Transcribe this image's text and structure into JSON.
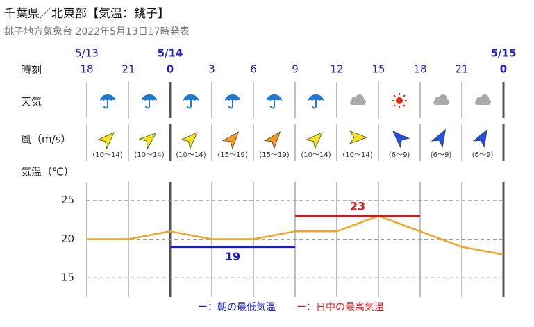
{
  "header": {
    "title": "千葉県／北東部【気温：銚子】",
    "subtitle": "銚子地方気象台 2022年5月13日17時発表"
  },
  "row_labels": {
    "time": "時刻",
    "weather": "天気",
    "wind": "風（m/s）",
    "temperature": "気温（℃）"
  },
  "wind_speeds": [
    "(10～14)",
    "(10～14)",
    "(10～14)",
    "(15～19)",
    "(15～19)",
    "(10～14)",
    "(10～14)",
    "(6～9)",
    "(6～9)",
    "(6～9)"
  ],
  "chart_data": {
    "type": "line",
    "dates": [
      "5/13",
      null,
      "5/14",
      null,
      null,
      null,
      null,
      null,
      null,
      null,
      "5/15"
    ],
    "categories": [
      "18",
      "21",
      "0",
      "3",
      "6",
      "9",
      "12",
      "15",
      "18",
      "21",
      "0"
    ],
    "series": [
      {
        "color": "#f0a52a",
        "values": [
          20,
          20,
          21,
          20,
          20,
          21,
          21,
          23,
          21,
          19,
          18
        ]
      },
      {
        "name": "ー：朝の最低気温",
        "color": "#1a1ad0",
        "values": [
          null,
          null,
          19,
          19,
          19,
          19,
          null,
          null,
          null,
          null,
          null
        ]
      },
      {
        "name": "ー：日中の最高気温",
        "color": "#d81818",
        "values": [
          null,
          null,
          null,
          null,
          null,
          23,
          23,
          23,
          23,
          null,
          null
        ]
      }
    ],
    "ylim": [
      12.5,
      27.4
    ],
    "yticks": [
      15,
      20,
      25
    ],
    "grid": true
  }
}
